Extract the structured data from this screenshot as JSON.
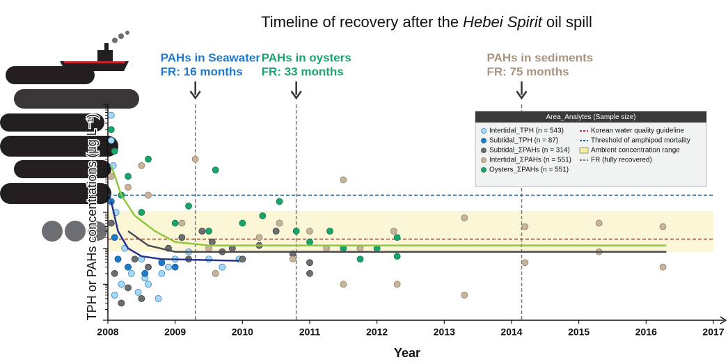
{
  "chart_data": {
    "type": "scatter",
    "title_parts": [
      "Timeline of recovery after the",
      "Hebei Spirit",
      "oil spill"
    ],
    "xlabel": "Year",
    "ylabel": "TPH or PAHs concentrations (μg L⁻¹)",
    "xlim": [
      2008,
      2017
    ],
    "xticks": [
      2008,
      2009,
      2010,
      2011,
      2012,
      2013,
      2014,
      2015,
      2016,
      2017
    ],
    "ylim": [
      0.001,
      1000
    ],
    "yticks": [
      0.001,
      0.01,
      0.1,
      1,
      10,
      100,
      1000
    ],
    "log_y": true,
    "legend_title": "Area_Analytes (Sample size)",
    "legend_position": "upper right",
    "series": [
      {
        "name": "Intertidal_TPH (n = 543)",
        "color": "#a9d8f5",
        "edge": "#2f86c8",
        "x": [
          2008.05,
          2008.05,
          2008.08,
          2008.1,
          2008.12,
          2008.15,
          2008.2,
          2008.25,
          2008.3,
          2008.35,
          2008.45,
          2008.5,
          2008.55,
          2008.6,
          2008.75,
          2008.8,
          2008.9,
          2009.0,
          2009.2,
          2009.5,
          2009.6,
          2009.7,
          2009.95
        ],
        "values": [
          500,
          100,
          20,
          0.005,
          1,
          0.05,
          0.01,
          0.1,
          0.03,
          0.02,
          0.006,
          0.05,
          0.015,
          0.01,
          0.004,
          0.02,
          0.03,
          0.05,
          0.08,
          0.05,
          0.02,
          0.03,
          0.05
        ]
      },
      {
        "name": "Subtidal_TPH (n = 87)",
        "color": "#1f78c8",
        "edge": "#145a96",
        "x": [
          2008.05,
          2008.1,
          2008.15,
          2008.3,
          2008.55,
          2008.8,
          2009.0
        ],
        "values": [
          2,
          0.2,
          0.05,
          0.03,
          0.02,
          0.04,
          0.03
        ]
      },
      {
        "name": "Subtidal_ΣPAHs (n = 314)",
        "color": "#6d6e71",
        "edge": "#3d3d3f",
        "x": [
          2008.05,
          2008.1,
          2008.2,
          2008.3,
          2008.4,
          2008.5,
          2008.6,
          2008.9,
          2009.1,
          2009.2,
          2009.4,
          2009.55,
          2009.7,
          2009.85,
          2010.0,
          2010.25,
          2010.5,
          2010.75,
          2011.0,
          2011.0
        ],
        "values": [
          0.5,
          0.02,
          0.003,
          0.008,
          0.05,
          0.004,
          0.03,
          0.1,
          0.2,
          0.05,
          0.3,
          0.15,
          0.08,
          0.1,
          0.05,
          0.12,
          0.3,
          0.07,
          0.02,
          0.04
        ]
      },
      {
        "name": "Intertidal_ΣPAHs (n = 551)",
        "color": "#c8b49a",
        "edge": "#8f7d68",
        "x": [
          2008.05,
          2008.3,
          2008.5,
          2008.6,
          2009.1,
          2009.3,
          2009.5,
          2009.6,
          2010.25,
          2010.55,
          2010.75,
          2011.0,
          2011.25,
          2011.5,
          2011.5,
          2011.75,
          2012.25,
          2012.3,
          2013.3,
          2013.3,
          2014.2,
          2014.2,
          2015.3,
          2015.3,
          2016.25,
          2016.25
        ],
        "values": [
          10,
          5,
          20,
          3,
          0.5,
          30,
          0.1,
          0.02,
          0.2,
          0.5,
          0.05,
          0.3,
          0.1,
          8,
          0.01,
          0.1,
          0.3,
          0.01,
          0.7,
          0.005,
          0.4,
          0.04,
          0.5,
          0.08,
          0.4,
          0.03
        ]
      },
      {
        "name": "Oysters_ΣPAHs (n = 551)",
        "color": "#1aa36b",
        "edge": "#0d7a4d",
        "x": [
          2008.05,
          2008.1,
          2008.2,
          2008.3,
          2008.5,
          2008.6,
          2009.0,
          2009.2,
          2009.6,
          2009.5,
          2010.0,
          2010.3,
          2010.55,
          2010.8,
          2011.0,
          2011.3,
          2011.5,
          2011.75,
          2012.0,
          2012.3,
          2012.3
        ],
        "values": [
          200,
          50,
          3,
          10,
          1,
          30,
          0.5,
          1.5,
          15,
          0.3,
          0.5,
          0.8,
          2,
          0.3,
          0.15,
          0.3,
          0.1,
          0.05,
          0.1,
          0.06,
          0.2
        ]
      }
    ],
    "fits": [
      {
        "color": "#8dc63f",
        "x": [
          2008.05,
          2008.2,
          2008.4,
          2008.7,
          2009.0,
          2009.5,
          2016.3
        ],
        "values": [
          20,
          3,
          0.8,
          0.3,
          0.15,
          0.12,
          0.12
        ]
      },
      {
        "color": "#4d4d4f",
        "x": [
          2008.3,
          2008.6,
          2009.0,
          2016.3
        ],
        "values": [
          0.3,
          0.12,
          0.08,
          0.08
        ]
      },
      {
        "color": "#27348b",
        "x": [
          2008.05,
          2008.15,
          2008.3,
          2008.5,
          2008.8,
          2009.95
        ],
        "values": [
          2,
          0.3,
          0.1,
          0.06,
          0.05,
          0.045
        ]
      }
    ],
    "reference_lines": [
      {
        "label": "Korean water quality guideline",
        "value": 0.18,
        "color": "#d7262c"
      },
      {
        "label": "Threshold of amphipod mortality",
        "value": 3,
        "color": "#1f5fa8"
      }
    ],
    "ambient_range": {
      "label": "Ambient concentration range",
      "range": [
        0.08,
        1.1
      ],
      "color": "#fbf7d6"
    },
    "fr_legend": "FR (fully recovered)",
    "fr_lines": [
      {
        "x": 2009.3,
        "analyte": "PAHs in Seawater",
        "label": "FR: 16 months",
        "color": "#1f78c8"
      },
      {
        "x": 2010.8,
        "analyte": "PAHs in oysters",
        "label": "FR: 33 months",
        "color": "#1aa36b"
      },
      {
        "x": 2014.15,
        "analyte": "PAHs in sediments",
        "label": "FR: 75 months",
        "color": "#a89580"
      }
    ]
  }
}
